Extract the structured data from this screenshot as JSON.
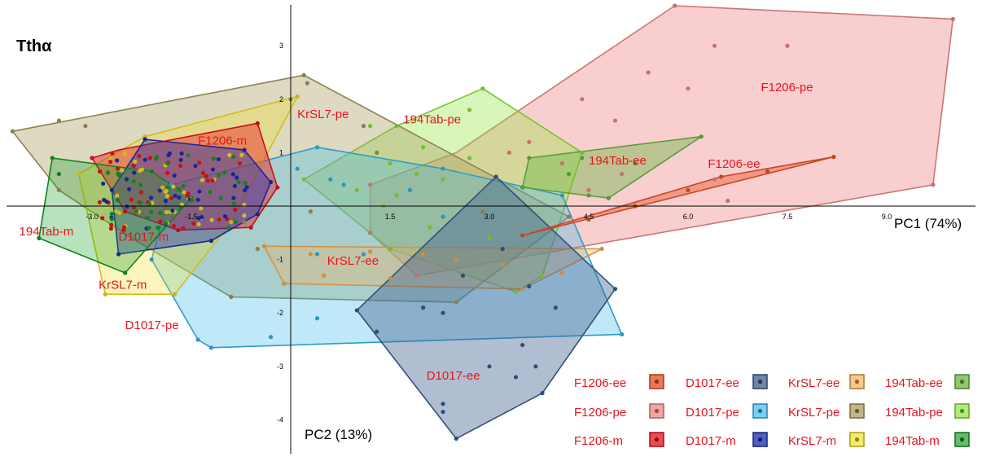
{
  "chart_data": {
    "type": "scatter",
    "title": "Tthα",
    "xlabel": "PC1 (74%)",
    "ylabel": "PC2 (13%)",
    "xlim": [
      -4.3,
      10.2
    ],
    "ylim": [
      -4.7,
      3.8
    ],
    "x_ticks": [
      "-3.0",
      "-1.5",
      "1.5",
      "3.0",
      "4.5",
      "6.0",
      "7.5",
      "9.0"
    ],
    "y_ticks": [
      "3",
      "2",
      "1",
      "-1",
      "-2",
      "-3",
      "-4"
    ],
    "legend_position": "bottom-right",
    "groups": [
      {
        "name": "F1206-pe",
        "label": "F1206-pe",
        "color": "#f08a8a",
        "opacity": 0.42,
        "label_pos": [
          7.1,
          2.15
        ],
        "hull": [
          [
            5.8,
            3.75
          ],
          [
            10.0,
            3.5
          ],
          [
            9.7,
            0.4
          ],
          [
            1.9,
            -1.3
          ],
          [
            1.2,
            -0.5
          ],
          [
            1.2,
            0.4
          ],
          [
            2.5,
            1.0
          ]
        ],
        "points": [
          [
            5.8,
            3.75
          ],
          [
            10.0,
            3.5
          ],
          [
            9.7,
            0.4
          ],
          [
            1.9,
            -1.3
          ],
          [
            1.2,
            -0.5
          ],
          [
            1.2,
            0.4
          ],
          [
            6.4,
            3.0
          ],
          [
            7.5,
            3.0
          ],
          [
            5.4,
            2.5
          ],
          [
            6.0,
            2.2
          ],
          [
            4.4,
            2.0
          ],
          [
            4.9,
            1.6
          ],
          [
            3.6,
            1.2
          ],
          [
            3.3,
            1.0
          ],
          [
            4.1,
            0.8
          ],
          [
            6.4,
            0.5
          ],
          [
            6.6,
            0.1
          ],
          [
            5.0,
            0.6
          ],
          [
            4.5,
            0.3
          ]
        ]
      },
      {
        "name": "194Tab-pe",
        "label": "194Tab-pe",
        "color": "#8ee63a",
        "opacity": 0.35,
        "label_pos": [
          1.7,
          1.55
        ],
        "hull": [
          [
            2.9,
            2.2
          ],
          [
            4.4,
            1.0
          ],
          [
            3.8,
            -1.3
          ],
          [
            3.4,
            -1.6
          ],
          [
            1.5,
            -0.8
          ],
          [
            0.2,
            0.5
          ],
          [
            1.6,
            1.5
          ]
        ],
        "points": [
          [
            2.9,
            2.2
          ],
          [
            4.4,
            1.0
          ],
          [
            3.8,
            -1.3
          ],
          [
            3.4,
            -1.6
          ],
          [
            1.5,
            -0.8
          ],
          [
            0.2,
            0.5
          ],
          [
            1.6,
            1.5
          ],
          [
            2.7,
            1.8
          ],
          [
            1.2,
            1.5
          ],
          [
            2.0,
            1.1
          ],
          [
            1.5,
            0.8
          ],
          [
            1.9,
            0.6
          ],
          [
            2.3,
            0.5
          ],
          [
            1.0,
            0.3
          ],
          [
            1.6,
            0.2
          ],
          [
            2.7,
            0.9
          ],
          [
            2.3,
            -0.2
          ],
          [
            3.0,
            -0.6
          ],
          [
            2.1,
            -0.4
          ],
          [
            1.4,
            0.0
          ]
        ]
      },
      {
        "name": "KrSL7-pe",
        "label": "KrSL7-pe",
        "color": "#a99a5c",
        "opacity": 0.38,
        "label_pos": [
          0.1,
          1.65
        ],
        "hull": [
          [
            -4.2,
            1.4
          ],
          [
            0.2,
            2.45
          ],
          [
            4.2,
            -0.2
          ],
          [
            2.5,
            -1.8
          ],
          [
            -0.9,
            -1.7
          ],
          [
            -2.4,
            -0.6
          ],
          [
            -3.5,
            0.3
          ]
        ],
        "points": [
          [
            -4.2,
            1.4
          ],
          [
            0.2,
            2.45
          ],
          [
            4.2,
            -0.2
          ],
          [
            2.5,
            -1.8
          ],
          [
            -0.9,
            -1.7
          ],
          [
            -2.4,
            -0.6
          ],
          [
            -3.5,
            0.3
          ],
          [
            -3.5,
            1.6
          ],
          [
            -3.1,
            1.5
          ],
          [
            0.25,
            2.3
          ],
          [
            0.0,
            2.0
          ],
          [
            1.1,
            1.5
          ],
          [
            1.3,
            1.0
          ],
          [
            1.8,
            0.3
          ],
          [
            -0.5,
            -0.8
          ],
          [
            -0.7,
            -0.3
          ],
          [
            0.3,
            -0.1
          ],
          [
            2.9,
            -0.1
          ]
        ]
      },
      {
        "name": "D1017-pe",
        "label": "D1017-pe",
        "color": "#38b7ea",
        "opacity": 0.32,
        "label_pos": [
          -2.5,
          -2.3
        ],
        "hull": [
          [
            0.4,
            1.1
          ],
          [
            2.3,
            0.7
          ],
          [
            4.1,
            0.2
          ],
          [
            5.0,
            -2.4
          ],
          [
            -1.2,
            -2.65
          ],
          [
            -1.4,
            -2.5
          ],
          [
            -2.1,
            -1.0
          ],
          [
            -1.8,
            0.4
          ]
        ],
        "points": [
          [
            0.4,
            1.1
          ],
          [
            2.3,
            0.7
          ],
          [
            4.1,
            0.2
          ],
          [
            5.0,
            -2.4
          ],
          [
            -1.2,
            -2.65
          ],
          [
            -1.4,
            -2.5
          ],
          [
            -2.1,
            -1.0
          ],
          [
            -1.8,
            0.4
          ],
          [
            -0.3,
            -2.45
          ],
          [
            0.4,
            -2.1
          ],
          [
            0.6,
            0.5
          ],
          [
            1.8,
            0.3
          ],
          [
            0.4,
            -0.9
          ],
          [
            1.1,
            -0.9
          ],
          [
            2.3,
            -0.2
          ],
          [
            0.1,
            0.7
          ],
          [
            0.8,
            0.4
          ]
        ]
      },
      {
        "name": "KrSL7-ee",
        "label": "KrSL7-ee",
        "color": "#f7ad52",
        "opacity": 0.32,
        "label_pos": [
          0.55,
          -1.1
        ],
        "hull": [
          [
            -0.4,
            -0.75
          ],
          [
            4.7,
            -0.8
          ],
          [
            3.5,
            -1.55
          ],
          [
            -0.1,
            -1.45
          ]
        ],
        "points": [
          [
            -0.4,
            -0.75
          ],
          [
            4.7,
            -0.8
          ],
          [
            3.5,
            -1.55
          ],
          [
            -0.1,
            -1.45
          ],
          [
            0.3,
            -0.9
          ],
          [
            1.2,
            -0.85
          ],
          [
            2.0,
            -0.9
          ],
          [
            2.5,
            -1.0
          ],
          [
            3.2,
            -1.1
          ],
          [
            0.5,
            -1.3
          ],
          [
            1.5,
            -1.35
          ],
          [
            4.1,
            -1.25
          ]
        ]
      },
      {
        "name": "D1017-ee",
        "label": "D1017-ee",
        "color": "#3d5d8c",
        "opacity": 0.4,
        "label_pos": [
          2.05,
          -3.25
        ],
        "hull": [
          [
            3.1,
            0.55
          ],
          [
            4.9,
            -1.55
          ],
          [
            3.8,
            -3.5
          ],
          [
            2.5,
            -4.35
          ],
          [
            1.0,
            -1.95
          ]
        ],
        "points": [
          [
            3.1,
            0.55
          ],
          [
            4.9,
            -1.55
          ],
          [
            3.8,
            -3.5
          ],
          [
            2.5,
            -4.35
          ],
          [
            1.0,
            -1.95
          ],
          [
            3.2,
            -0.8
          ],
          [
            2.6,
            -1.3
          ],
          [
            3.6,
            -1.5
          ],
          [
            4.0,
            -1.9
          ],
          [
            2.0,
            -1.9
          ],
          [
            1.3,
            -2.35
          ],
          [
            2.3,
            -2.0
          ],
          [
            3.5,
            -2.6
          ],
          [
            3.7,
            -3.0
          ],
          [
            3.4,
            -3.2
          ],
          [
            2.3,
            -3.7
          ],
          [
            2.3,
            -3.85
          ],
          [
            3.0,
            -3.0
          ]
        ]
      },
      {
        "name": "194Tab-ee",
        "label": "194Tab-ee",
        "color": "#6cb846",
        "opacity": 0.42,
        "label_pos": [
          4.5,
          0.78
        ],
        "hull": [
          [
            3.6,
            0.9
          ],
          [
            6.2,
            1.3
          ],
          [
            4.8,
            0.15
          ],
          [
            3.5,
            0.35
          ]
        ],
        "points": [
          [
            3.6,
            0.9
          ],
          [
            6.2,
            1.3
          ],
          [
            4.8,
            0.15
          ],
          [
            3.5,
            0.35
          ],
          [
            4.4,
            0.9
          ],
          [
            5.2,
            0.8
          ],
          [
            4.5,
            0.2
          ],
          [
            4.2,
            0.6
          ]
        ]
      },
      {
        "name": "F1206-ee",
        "label": "F1206-ee",
        "color": "#e8562c",
        "opacity": 0.45,
        "label_pos": [
          6.3,
          0.72
        ],
        "hull": [
          [
            8.2,
            0.92
          ],
          [
            3.5,
            -0.55
          ],
          [
            6.5,
            0.55
          ]
        ],
        "points": [
          [
            8.2,
            0.92
          ],
          [
            3.5,
            -0.55
          ],
          [
            6.5,
            0.55
          ],
          [
            5.2,
            0.0
          ],
          [
            4.5,
            -0.25
          ],
          [
            6.0,
            0.3
          ],
          [
            7.2,
            0.65
          ]
        ]
      },
      {
        "name": "KrSL7-m",
        "label": "KrSL7-m",
        "color": "#f3df1e",
        "opacity": 0.3,
        "label_pos": [
          -2.9,
          -1.55
        ],
        "hull": [
          [
            0.1,
            2.05
          ],
          [
            -2.2,
            1.3
          ],
          [
            -3.2,
            0.6
          ],
          [
            -2.8,
            -1.65
          ],
          [
            -1.75,
            -1.65
          ],
          [
            -0.9,
            -0.3
          ]
        ],
        "points": [
          [
            0.1,
            2.05
          ],
          [
            -2.2,
            1.3
          ],
          [
            -3.2,
            0.6
          ],
          [
            -2.8,
            -1.65
          ],
          [
            -1.75,
            -1.65
          ],
          [
            -0.9,
            -0.3
          ]
        ]
      },
      {
        "name": "F1206-m",
        "label": "F1206-m",
        "color": "#e8141c",
        "opacity": 0.42,
        "label_pos": [
          -1.4,
          1.15
        ],
        "hull": [
          [
            -3.0,
            0.9
          ],
          [
            -2.6,
            1.05
          ],
          [
            -0.5,
            1.55
          ],
          [
            -0.2,
            0.35
          ],
          [
            -0.6,
            -0.4
          ],
          [
            -1.7,
            -0.45
          ],
          [
            -2.5,
            -0.1
          ]
        ],
        "points": [
          [
            -3.0,
            0.9
          ],
          [
            -0.5,
            1.55
          ],
          [
            -0.2,
            0.35
          ],
          [
            -0.6,
            -0.4
          ],
          [
            -1.7,
            -0.45
          ],
          [
            -2.5,
            -0.1
          ]
        ]
      },
      {
        "name": "D1017-m",
        "label": "D1017-m",
        "color": "#1d2eb0",
        "opacity": 0.42,
        "label_pos": [
          -2.6,
          -0.65
        ],
        "hull": [
          [
            -2.2,
            1.25
          ],
          [
            -0.7,
            1.05
          ],
          [
            -0.3,
            0.45
          ],
          [
            -0.5,
            -0.15
          ],
          [
            -1.2,
            -0.65
          ],
          [
            -2.6,
            -0.9
          ],
          [
            -2.7,
            0.3
          ]
        ],
        "points": [
          [
            -2.2,
            1.25
          ],
          [
            -0.7,
            1.05
          ],
          [
            -0.3,
            0.45
          ],
          [
            -0.5,
            -0.15
          ],
          [
            -1.2,
            -0.65
          ],
          [
            -2.6,
            -0.9
          ],
          [
            -2.7,
            0.3
          ]
        ]
      },
      {
        "name": "194Tab-m",
        "label": "194Tab-m",
        "color": "#139a24",
        "opacity": 0.3,
        "label_pos": [
          -4.1,
          -0.55
        ],
        "hull": [
          [
            -3.6,
            0.9
          ],
          [
            -2.1,
            0.65
          ],
          [
            -1.5,
            0.15
          ],
          [
            -2.5,
            -1.25
          ],
          [
            -3.8,
            -0.6
          ]
        ],
        "points": [
          [
            -3.6,
            0.9
          ],
          [
            -2.1,
            0.65
          ],
          [
            -1.5,
            0.15
          ],
          [
            -2.5,
            -1.25
          ],
          [
            -3.8,
            -0.6
          ],
          [
            -3.5,
            0.6
          ]
        ]
      }
    ],
    "legend": {
      "rows": [
        [
          "F1206-ee",
          "D1017-ee",
          "KrSL7-ee",
          "194Tab-ee"
        ],
        [
          "F1206-pe",
          "D1017-pe",
          "KrSL7-pe",
          "194Tab-pe"
        ],
        [
          "F1206-m",
          "D1017-m",
          "KrSL7-m",
          "194Tab-m"
        ]
      ]
    }
  }
}
